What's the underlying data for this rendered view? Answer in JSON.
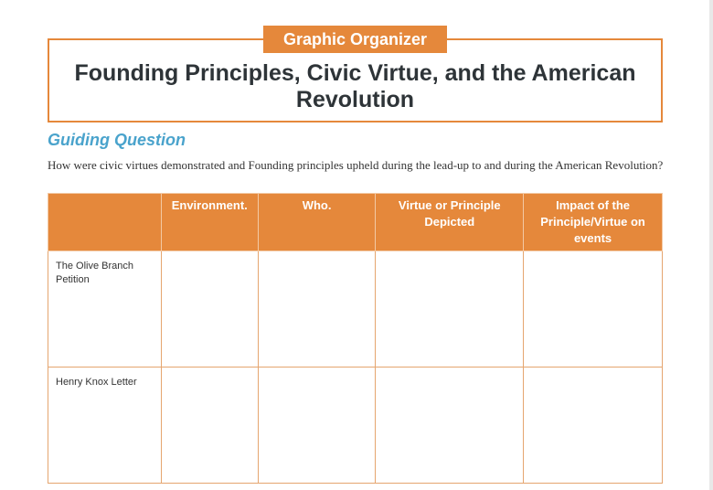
{
  "badge": "Graphic Organizer",
  "title": "Founding Principles, Civic Virtue, and the American Revolution",
  "guiding_question": {
    "heading": "Guiding Question",
    "text": "How were civic virtues demonstrated and Founding principles upheld during the lead-up to and during the American Revolution?"
  },
  "table": {
    "headers": [
      "",
      "Environment.",
      "Who.",
      "Virtue or Principle Depicted",
      "Impact of the Principle/Virtue on events"
    ],
    "rows": [
      {
        "label": "The Olive Branch Petition"
      },
      {
        "label": "Henry Knox Letter"
      }
    ]
  },
  "colors": {
    "accent": "#e5883b",
    "heading": "#4aa3cc"
  }
}
